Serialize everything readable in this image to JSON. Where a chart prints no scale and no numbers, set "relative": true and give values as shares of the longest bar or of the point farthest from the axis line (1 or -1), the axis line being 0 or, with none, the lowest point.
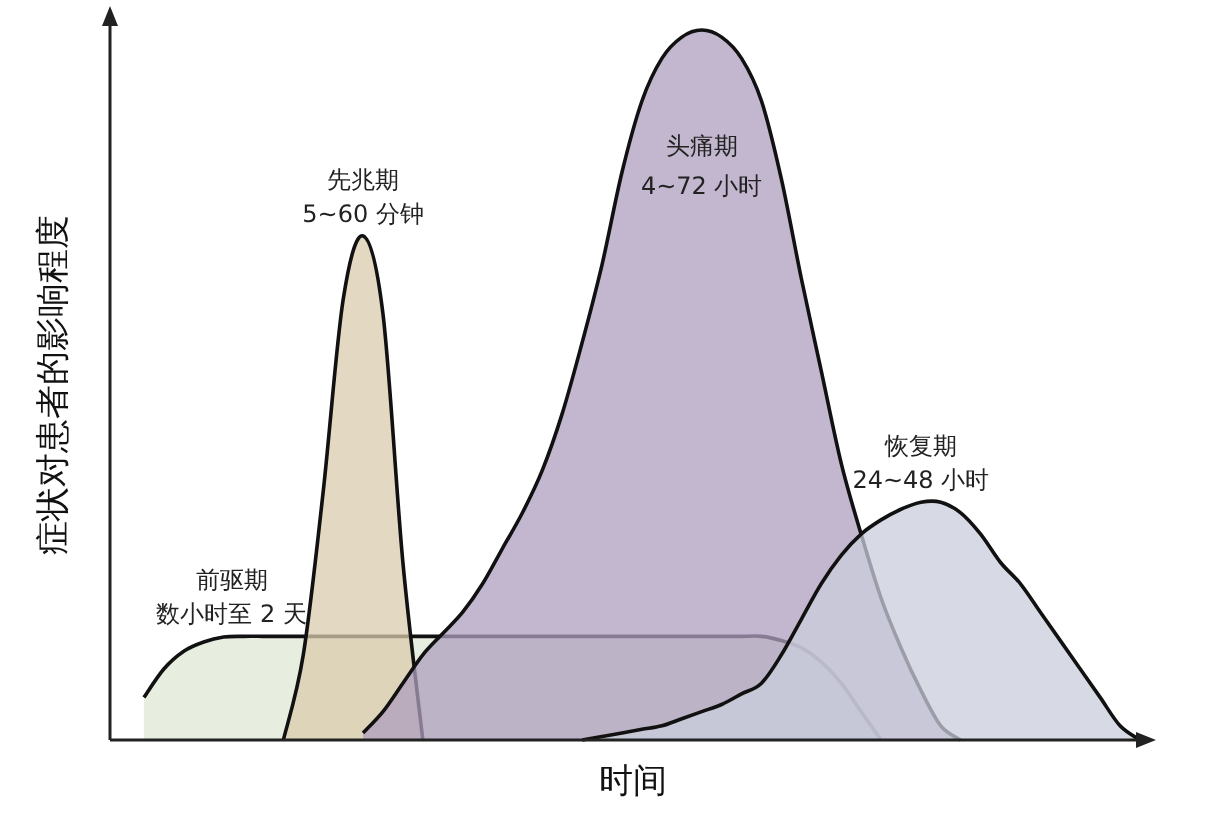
{
  "chart_data": {
    "type": "area",
    "relative": true,
    "xlabel": "时间",
    "ylabel": "症状对患者的影响程度",
    "categories": [
      null,
      null,
      null,
      null,
      null,
      null,
      null,
      null,
      null,
      null,
      null,
      null,
      null,
      null,
      null,
      null,
      null,
      null,
      null,
      null,
      null,
      null,
      null,
      null,
      null,
      null,
      null,
      null,
      null,
      null,
      null,
      null,
      null,
      null,
      null,
      null,
      null,
      null,
      null,
      null,
      null,
      null,
      null,
      null,
      null,
      null,
      null,
      null,
      null,
      null,
      null,
      null
    ],
    "series": [
      {
        "name": "前驱期",
        "color": "#dfe7d4",
        "values": [
          null,
          0.06,
          0.1,
          0.125,
          0.138,
          0.145,
          0.146,
          0.146,
          0.146,
          0.146,
          0.146,
          0.146,
          0.146,
          0.146,
          0.146,
          0.146,
          0.146,
          0.146,
          0.146,
          0.146,
          0.146,
          0.146,
          0.146,
          0.146,
          0.146,
          0.146,
          0.146,
          0.146,
          0.146,
          0.146,
          0.146,
          0.146,
          0.146,
          0.14,
          0.13,
          0.11,
          0.08,
          0.04,
          0,
          null,
          null,
          null,
          null,
          null,
          null,
          null,
          null,
          null,
          null,
          null,
          null,
          null
        ]
      },
      {
        "name": "先兆期",
        "color": "#d9cbad",
        "values": [
          null,
          null,
          null,
          null,
          null,
          null,
          null,
          null,
          0,
          0.12,
          0.35,
          0.62,
          0.71,
          0.6,
          0.25,
          0,
          null,
          null,
          null,
          null,
          null,
          null,
          null,
          null,
          null,
          null,
          null,
          null,
          null,
          null,
          null,
          null,
          null,
          null,
          null,
          null,
          null,
          null,
          null,
          null,
          null,
          null,
          null,
          null,
          null,
          null,
          null,
          null,
          null,
          null,
          null,
          null
        ]
      },
      {
        "name": "头痛期",
        "color": "#ad9fbd",
        "values": [
          null,
          null,
          null,
          null,
          null,
          null,
          null,
          null,
          null,
          null,
          null,
          null,
          0.01,
          0.04,
          0.08,
          0.12,
          0.15,
          0.18,
          0.22,
          0.27,
          0.32,
          0.38,
          0.46,
          0.56,
          0.67,
          0.8,
          0.9,
          0.96,
          0.99,
          1,
          0.99,
          0.96,
          0.9,
          0.79,
          0.65,
          0.52,
          0.39,
          0.29,
          0.2,
          0.13,
          0.07,
          0.02,
          0,
          null,
          null,
          null,
          null,
          null,
          null,
          null,
          null,
          null
        ]
      },
      {
        "name": "恢复期",
        "color": "#c9cddc",
        "values": [
          null,
          null,
          null,
          null,
          null,
          null,
          null,
          null,
          null,
          null,
          null,
          null,
          null,
          null,
          null,
          null,
          null,
          null,
          null,
          null,
          null,
          null,
          null,
          0,
          0.005,
          0.01,
          0.015,
          0.02,
          0.03,
          0.04,
          0.05,
          0.065,
          0.08,
          0.12,
          0.17,
          0.22,
          0.26,
          0.29,
          0.31,
          0.325,
          0.335,
          0.335,
          0.32,
          0.29,
          0.25,
          0.22,
          0.18,
          0.14,
          0.1,
          0.06,
          0.02,
          0
        ]
      }
    ],
    "annotations": [
      "数小时至 2 天",
      "5~60 分钟",
      "4~72 小时",
      "24~48 小时"
    ]
  }
}
